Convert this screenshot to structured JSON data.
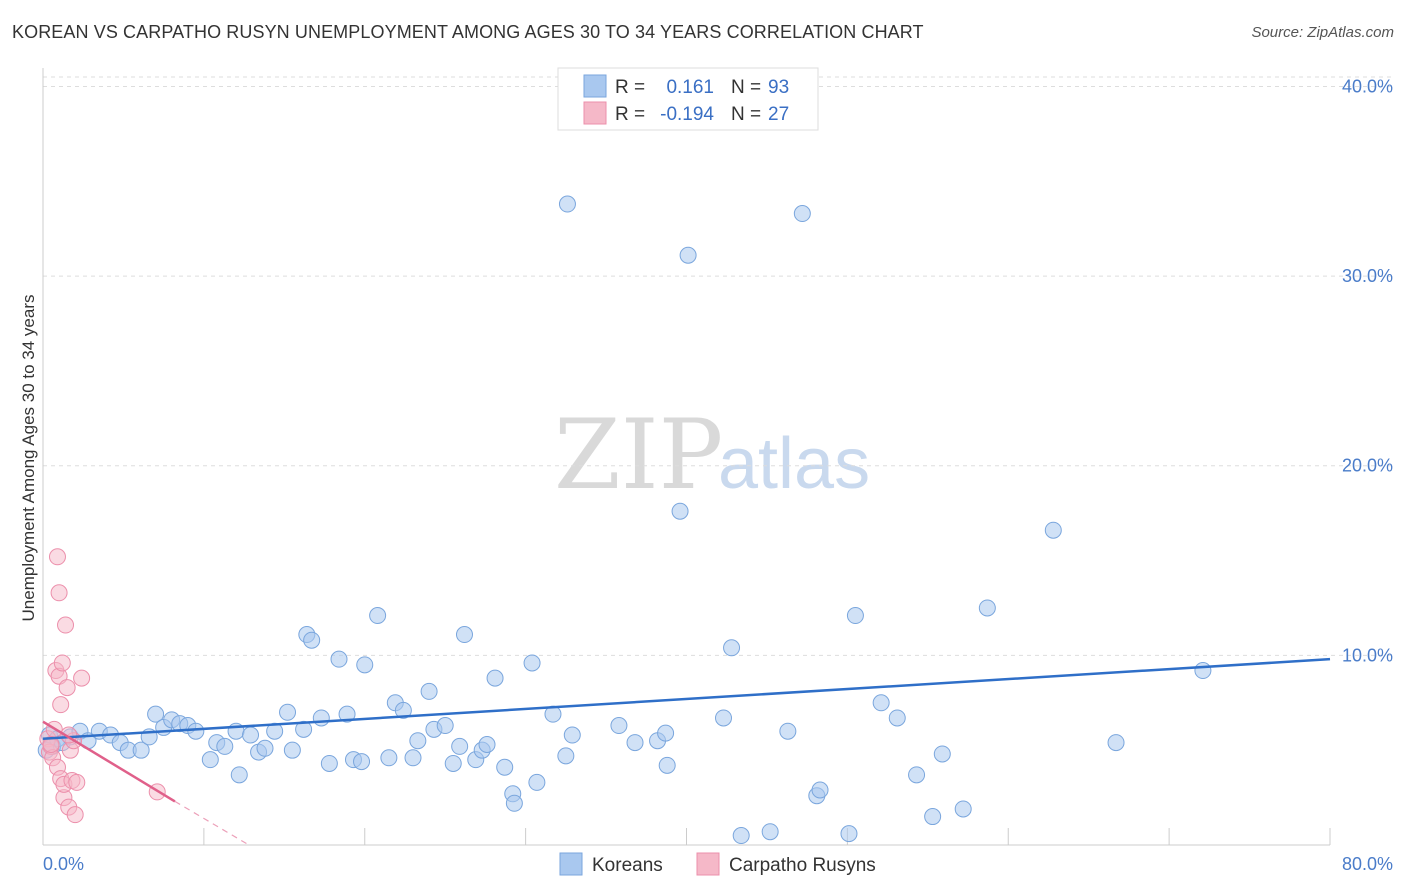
{
  "header": {
    "title": "KOREAN VS CARPATHO RUSYN UNEMPLOYMENT AMONG AGES 30 TO 34 YEARS CORRELATION CHART",
    "source": "Source: ZipAtlas.com"
  },
  "watermark": {
    "zip": "ZIP",
    "atlas": "atlas"
  },
  "colors": {
    "korean_fill": "#a9c8ef",
    "korean_stroke": "#7aa6dd",
    "korean_line": "#2f6fc8",
    "rusyn_fill": "#f5b8c8",
    "rusyn_stroke": "#ec8fab",
    "rusyn_line": "#e0608a",
    "tick_text": "#4a7cc9",
    "grid": "#dddddd"
  },
  "legend_top": {
    "rows": [
      {
        "r_label": "R =",
        "r_value": "0.161",
        "n_label": "N =",
        "n_value": "93"
      },
      {
        "r_label": "R =",
        "r_value": "-0.194",
        "n_label": "N =",
        "n_value": "27"
      }
    ]
  },
  "legend_bottom": {
    "items": [
      "Koreans",
      "Carpatho Rusyns"
    ]
  },
  "chart_data": {
    "type": "scatter",
    "title": "KOREAN VS CARPATHO RUSYN UNEMPLOYMENT AMONG AGES 30 TO 34 YEARS CORRELATION CHART",
    "xlabel": "",
    "ylabel": "Unemployment Among Ages 30 to 34 years",
    "xlim": [
      0,
      80
    ],
    "ylim": [
      0,
      40.5
    ],
    "x_tick_labels": [
      "0.0%",
      "80.0%"
    ],
    "y_ticks": [
      10,
      20,
      30,
      40
    ],
    "y_tick_labels": [
      "10.0%",
      "20.0%",
      "30.0%",
      "40.0%"
    ],
    "grid": true,
    "legend_position": "top-center",
    "series": [
      {
        "name": "Koreans",
        "R": 0.161,
        "N": 93,
        "trend": {
          "x0": 0,
          "y0": 5.6,
          "x1": 80,
          "y1": 9.8
        },
        "points": [
          [
            0.4,
            5.8
          ],
          [
            0.6,
            5.2
          ],
          [
            0.9,
            5.6
          ],
          [
            1.2,
            5.4
          ],
          [
            1.7,
            5.7
          ],
          [
            2.3,
            6.0
          ],
          [
            2.8,
            5.5
          ],
          [
            3.5,
            6.0
          ],
          [
            4.2,
            5.8
          ],
          [
            4.8,
            5.4
          ],
          [
            5.3,
            5.0
          ],
          [
            6.1,
            5.0
          ],
          [
            6.6,
            5.7
          ],
          [
            7.0,
            6.9
          ],
          [
            7.5,
            6.2
          ],
          [
            8.0,
            6.6
          ],
          [
            8.5,
            6.4
          ],
          [
            9.0,
            6.3
          ],
          [
            9.5,
            6.0
          ],
          [
            10.4,
            4.5
          ],
          [
            10.8,
            5.4
          ],
          [
            11.3,
            5.2
          ],
          [
            12.0,
            6.0
          ],
          [
            12.2,
            3.7
          ],
          [
            12.9,
            5.8
          ],
          [
            13.4,
            4.9
          ],
          [
            13.8,
            5.1
          ],
          [
            14.4,
            6.0
          ],
          [
            15.2,
            7.0
          ],
          [
            15.5,
            5.0
          ],
          [
            16.2,
            6.1
          ],
          [
            16.4,
            11.1
          ],
          [
            16.7,
            10.8
          ],
          [
            17.3,
            6.7
          ],
          [
            17.8,
            4.3
          ],
          [
            18.4,
            9.8
          ],
          [
            18.9,
            6.9
          ],
          [
            19.3,
            4.5
          ],
          [
            19.8,
            4.4
          ],
          [
            20.0,
            9.5
          ],
          [
            20.8,
            12.1
          ],
          [
            21.5,
            4.6
          ],
          [
            21.9,
            7.5
          ],
          [
            22.4,
            7.1
          ],
          [
            23.0,
            4.6
          ],
          [
            23.3,
            5.5
          ],
          [
            24.0,
            8.1
          ],
          [
            24.3,
            6.1
          ],
          [
            25.0,
            6.3
          ],
          [
            25.5,
            4.3
          ],
          [
            25.9,
            5.2
          ],
          [
            26.2,
            11.1
          ],
          [
            26.9,
            4.5
          ],
          [
            27.3,
            5.0
          ],
          [
            27.6,
            5.3
          ],
          [
            28.1,
            8.8
          ],
          [
            28.7,
            4.1
          ],
          [
            29.2,
            2.7
          ],
          [
            29.3,
            2.2
          ],
          [
            30.4,
            9.6
          ],
          [
            30.7,
            3.3
          ],
          [
            31.7,
            6.9
          ],
          [
            32.5,
            4.7
          ],
          [
            32.6,
            33.8
          ],
          [
            32.9,
            5.8
          ],
          [
            35.8,
            6.3
          ],
          [
            36.8,
            5.4
          ],
          [
            38.2,
            5.5
          ],
          [
            38.7,
            5.9
          ],
          [
            38.8,
            4.2
          ],
          [
            39.6,
            17.6
          ],
          [
            40.1,
            31.1
          ],
          [
            42.3,
            6.7
          ],
          [
            42.8,
            10.4
          ],
          [
            43.4,
            0.5
          ],
          [
            45.2,
            0.7
          ],
          [
            46.3,
            6.0
          ],
          [
            47.2,
            33.3
          ],
          [
            48.1,
            2.6
          ],
          [
            48.3,
            2.9
          ],
          [
            50.1,
            0.6
          ],
          [
            50.5,
            12.1
          ],
          [
            52.1,
            7.5
          ],
          [
            53.1,
            6.7
          ],
          [
            54.3,
            3.7
          ],
          [
            55.3,
            1.5
          ],
          [
            55.9,
            4.8
          ],
          [
            57.2,
            1.9
          ],
          [
            58.7,
            12.5
          ],
          [
            62.8,
            16.6
          ],
          [
            66.7,
            5.4
          ],
          [
            72.1,
            9.2
          ],
          [
            0.2,
            5.0
          ]
        ]
      },
      {
        "name": "Carpatho Rusyns",
        "R": -0.194,
        "N": 27,
        "trend": {
          "x0": 0,
          "y0": 6.5,
          "x1": 8.2,
          "y1": 2.3
        },
        "trend_extension": {
          "x0": 8.2,
          "y0": 2.3,
          "x1": 12.8,
          "y1": 0
        },
        "points": [
          [
            0.3,
            5.6
          ],
          [
            0.4,
            4.9
          ],
          [
            0.5,
            5.2
          ],
          [
            0.6,
            4.6
          ],
          [
            0.7,
            6.1
          ],
          [
            0.8,
            9.2
          ],
          [
            0.9,
            4.1
          ],
          [
            0.9,
            15.2
          ],
          [
            1.0,
            13.3
          ],
          [
            1.0,
            8.9
          ],
          [
            1.1,
            7.4
          ],
          [
            1.2,
            9.6
          ],
          [
            1.1,
            3.5
          ],
          [
            1.3,
            2.5
          ],
          [
            1.4,
            11.6
          ],
          [
            1.5,
            8.3
          ],
          [
            1.3,
            3.2
          ],
          [
            1.6,
            2.0
          ],
          [
            1.7,
            5.0
          ],
          [
            1.8,
            3.4
          ],
          [
            1.9,
            5.5
          ],
          [
            2.0,
            1.6
          ],
          [
            2.1,
            3.3
          ],
          [
            1.6,
            5.8
          ],
          [
            2.4,
            8.8
          ],
          [
            0.5,
            5.3
          ],
          [
            7.1,
            2.8
          ]
        ]
      }
    ]
  }
}
